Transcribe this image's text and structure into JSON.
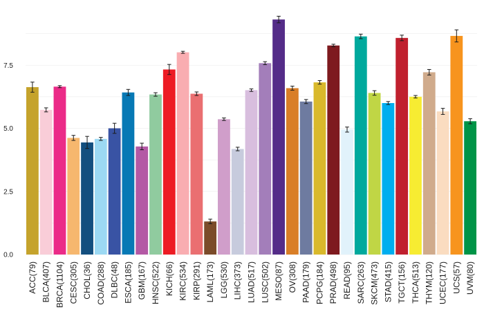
{
  "chart_data": {
    "type": "bar",
    "title": "",
    "xlabel": "",
    "ylabel": "",
    "ylim": [
      0,
      9.6
    ],
    "yticks": [
      0.0,
      2.5,
      5.0,
      7.5
    ],
    "ytick_labels": [
      "0.0",
      "2.5",
      "5.0",
      "7.5"
    ],
    "grid": true,
    "legend": "none",
    "categories": [
      "ACC(79)",
      "BLCA(407)",
      "BRCA(1104)",
      "CESC(305)",
      "CHOL(36)",
      "COAD(288)",
      "DLBC(48)",
      "ESCA(185)",
      "GBM(167)",
      "HNSC(522)",
      "KICH(66)",
      "KIRC(534)",
      "KIRP(291)",
      "LAML(173)",
      "LGG(530)",
      "LIHC(373)",
      "LUAD(517)",
      "LUSC(502)",
      "MESO(87)",
      "OV(308)",
      "PAAD(179)",
      "PCPG(184)",
      "PRAD(498)",
      "READ(95)",
      "SARC(263)",
      "SKCM(473)",
      "STAD(415)",
      "TGCT(156)",
      "THCA(513)",
      "THYM(120)",
      "UCEC(177)",
      "UCS(57)",
      "UVM(80)"
    ],
    "values": [
      6.63,
      5.73,
      6.65,
      4.62,
      4.44,
      4.58,
      5.0,
      6.42,
      4.28,
      6.34,
      7.33,
      8.01,
      6.37,
      1.31,
      5.36,
      4.18,
      6.51,
      7.58,
      9.31,
      6.59,
      6.06,
      6.82,
      8.28,
      4.95,
      8.64,
      6.4,
      6.0,
      8.58,
      6.25,
      7.22,
      5.67,
      8.66,
      5.28
    ],
    "errors": [
      0.2,
      0.08,
      0.04,
      0.1,
      0.24,
      0.06,
      0.2,
      0.12,
      0.13,
      0.07,
      0.2,
      0.04,
      0.07,
      0.09,
      0.05,
      0.07,
      0.05,
      0.06,
      0.13,
      0.08,
      0.08,
      0.07,
      0.05,
      0.1,
      0.09,
      0.09,
      0.06,
      0.11,
      0.05,
      0.11,
      0.12,
      0.24,
      0.1
    ],
    "colors": [
      "#C5A32C",
      "#F9CDD8",
      "#EB2B88",
      "#F6B76E",
      "#134F7F",
      "#9CD9F3",
      "#3953A4",
      "#0779B5",
      "#B459A5",
      "#90CB9F",
      "#ED1C24",
      "#F9ADB1",
      "#EA6F71",
      "#7B4C2A",
      "#D09ECA",
      "#C7CBDD",
      "#D8BEDE",
      "#A37EBA",
      "#542C88",
      "#D97E27",
      "#6E7BA0",
      "#D9B92C",
      "#7E1A1F",
      "#E1F2FB",
      "#00A99D",
      "#C0D645",
      "#00AEEF",
      "#C0202E",
      "#F7EC32",
      "#D0AB8C",
      "#FADCC0",
      "#F7941E",
      "#009447"
    ]
  }
}
